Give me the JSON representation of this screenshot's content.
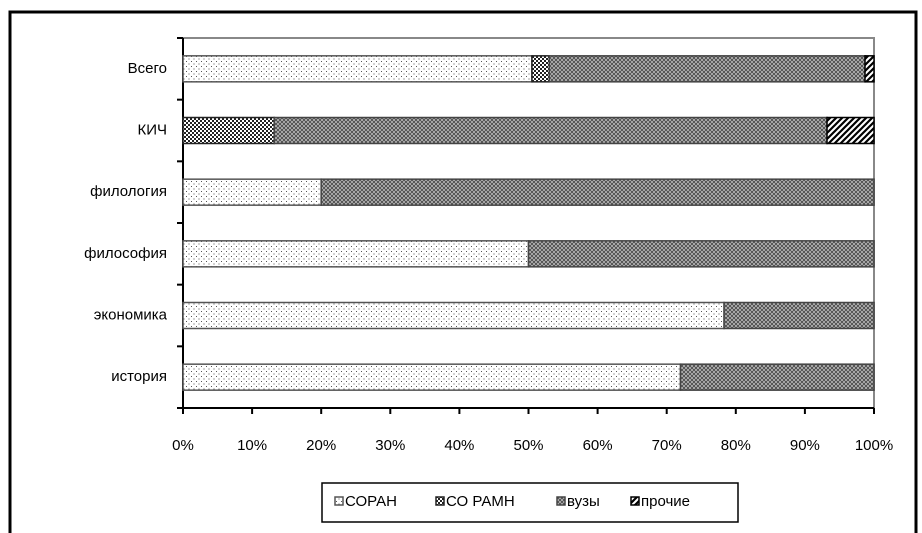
{
  "chart_data": {
    "type": "stacked-barh",
    "categories": [
      "Всего",
      "КИЧ",
      "филология",
      "философия",
      "экономика",
      "история"
    ],
    "series": [
      {
        "name": "СОРАН",
        "color": "#555555",
        "pattern": "dots",
        "values": [
          50.5,
          0,
          20,
          50,
          78.3,
          72
        ]
      },
      {
        "name": "СО РАМН",
        "color": "#222222",
        "pattern": "checker",
        "values": [
          2.5,
          13.2,
          0,
          0,
          0,
          0
        ]
      },
      {
        "name": "вузы",
        "color": "#444444",
        "pattern": "crosshatch",
        "values": [
          45.7,
          80,
          80,
          50,
          21.7,
          28
        ]
      },
      {
        "name": "прочие",
        "color": "#000000",
        "pattern": "stripes",
        "values": [
          1.3,
          6.8,
          0,
          0,
          0,
          0
        ]
      }
    ],
    "xlim": [
      0,
      100
    ],
    "xticks": [
      {
        "value": 0,
        "label": "0%"
      },
      {
        "value": 10,
        "label": "10%"
      },
      {
        "value": 20,
        "label": "20%"
      },
      {
        "value": 30,
        "label": "30%"
      },
      {
        "value": 40,
        "label": "40%"
      },
      {
        "value": 50,
        "label": "50%"
      },
      {
        "value": 60,
        "label": "60%"
      },
      {
        "value": 70,
        "label": "70%"
      },
      {
        "value": 80,
        "label": "80%"
      },
      {
        "value": 90,
        "label": "90%"
      },
      {
        "value": 100,
        "label": "100%"
      }
    ],
    "legend": "bottom"
  }
}
